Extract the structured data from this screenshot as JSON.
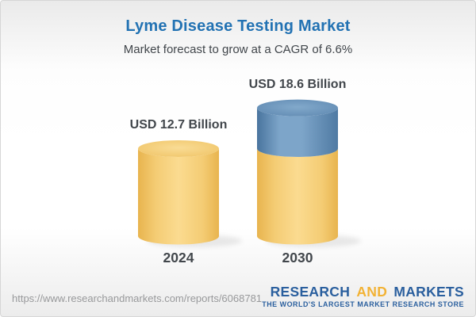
{
  "header": {
    "title": "Lyme Disease Testing Market",
    "subtitle": "Market forecast to grow at a CAGR of 6.6%"
  },
  "chart_data": {
    "type": "bar",
    "style": "3d-cylinder",
    "title": "Lyme Disease Testing Market",
    "subtitle": "Market forecast to grow at a CAGR of 6.6%",
    "unit": "USD Billion",
    "cagr_percent": 6.6,
    "categories": [
      "2024",
      "2030"
    ],
    "values": [
      12.7,
      18.6
    ],
    "value_labels": [
      "USD 12.7 Billion",
      "USD 18.6 Billion"
    ],
    "series": [
      {
        "name": "base-market-size",
        "values": [
          12.7,
          12.7
        ],
        "color": "yellow"
      },
      {
        "name": "forecast-growth",
        "values": [
          0,
          5.9
        ],
        "color": "blue"
      }
    ],
    "axes": "none",
    "grid": false,
    "legend": "none"
  },
  "footer": {
    "url": "https://www.researchandmarkets.com/reports/6068781",
    "logo": {
      "word1": "RESEARCH",
      "word2": "AND",
      "word3": "MARKETS",
      "tagline": "THE WORLD'S LARGEST MARKET RESEARCH STORE"
    }
  },
  "colors": {
    "title_blue": "#2272B3",
    "text_dark": "#41464B",
    "url_gray": "#98999B",
    "logo_blue": "#2A5F9E",
    "logo_gold": "#F2B234",
    "yellow_edge": "#E8B44E",
    "yellow_mid": "#F4CC74",
    "yellow_center": "#FBDB90",
    "yellow_top_center": "#F9DC95",
    "yellow_top_edge": "#EFC263",
    "blue_edge_left": "#49749E",
    "blue_center": "#7DA5C9",
    "blue_edge_right": "#4F7AA3",
    "blue_top_center": "#82A9CB",
    "blue_top_edge": "#5C86AF"
  }
}
